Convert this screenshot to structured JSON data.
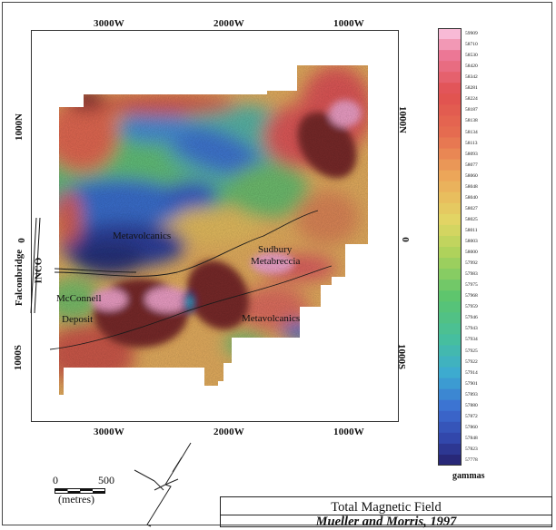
{
  "title": "Total Magnetic Field",
  "credit": "Mueller and Morris, 1997",
  "axes": {
    "top": [
      "3000W",
      "2000W",
      "1000W"
    ],
    "bottom": [
      "3000W",
      "2000W",
      "1000W"
    ],
    "left": [
      "1000N",
      "0",
      "1000S"
    ],
    "right": [
      "1000N",
      "0",
      "1000S"
    ]
  },
  "map_labels": {
    "metavolcanics_upper": "Metavolcanics",
    "metavolcanics_lower": "Metavolcanics",
    "sudbury": "Sudbury",
    "metabreccia": "Metabreccia",
    "mcconnell": "McConnell",
    "deposit": "Deposit",
    "falconbridge": "Falconbridge",
    "inco": "INCO"
  },
  "scale": {
    "zero": "0",
    "five_hundred": "500",
    "units": "(metres)"
  },
  "legend": {
    "unit": "gammas",
    "values": [
      "59909",
      "58710",
      "58530",
      "58420",
      "58342",
      "58281",
      "58224",
      "58187",
      "58138",
      "58134",
      "58113",
      "58093",
      "58077",
      "58060",
      "58048",
      "58040",
      "58027",
      "58025",
      "58011",
      "58003",
      "58000",
      "57992",
      "57983",
      "57975",
      "57968",
      "57959",
      "57946",
      "57943",
      "57934",
      "57925",
      "57922",
      "57914",
      "57901",
      "57893",
      "57880",
      "57872",
      "57860",
      "57848",
      "57823",
      "57778"
    ]
  },
  "colors": {
    "low": "#2a2a7a",
    "blue": "#3a6fd0",
    "cyan": "#40c0e0",
    "green": "#40c080",
    "yellow": "#e0d860",
    "orange": "#f0a050",
    "red": "#e05050",
    "maroon": "#7a2a2a",
    "pink": "#f0a0c8"
  }
}
